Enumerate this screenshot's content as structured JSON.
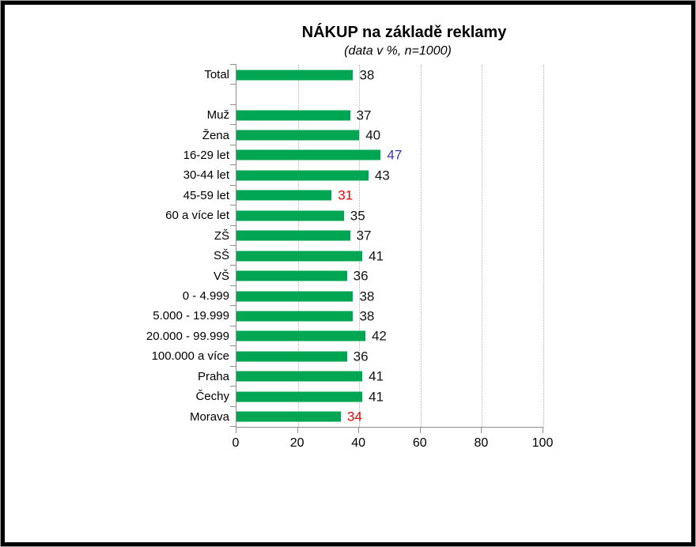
{
  "window": {
    "background": "#ffffff",
    "border_color": "#000000",
    "outer_edge_color": "#a6a6a6"
  },
  "chart_data": {
    "type": "bar",
    "orientation": "horizontal",
    "title": "NÁKUP na základě reklamy",
    "subtitle": "(data v %, n=1000)",
    "xlim": [
      0,
      100
    ],
    "x_ticks": [
      0,
      20,
      40,
      60,
      80,
      100
    ],
    "grid": "vertical-dotted",
    "legend": "none",
    "bar_color": "#00A651",
    "value_color_default": "#141414",
    "highlight_blue": "#3333CC",
    "highlight_red": "#FF0000",
    "rows": [
      {
        "label": "Total",
        "value": 38
      },
      {
        "label": "",
        "value": null
      },
      {
        "label": "Muž",
        "value": 37
      },
      {
        "label": "Žena",
        "value": 40
      },
      {
        "label": "16-29 let",
        "value": 47,
        "value_color": "#3333CC"
      },
      {
        "label": "30-44 let",
        "value": 43
      },
      {
        "label": "45-59 let",
        "value": 31,
        "value_color": "#FF0000"
      },
      {
        "label": "60 a více let",
        "value": 35
      },
      {
        "label": "ZŠ",
        "value": 37
      },
      {
        "label": "SŠ",
        "value": 41
      },
      {
        "label": "VŠ",
        "value": 36
      },
      {
        "label": "0 - 4.999",
        "value": 38
      },
      {
        "label": "5.000 - 19.999",
        "value": 38
      },
      {
        "label": "20.000 - 99.999",
        "value": 42
      },
      {
        "label": "100.000 a více",
        "value": 36
      },
      {
        "label": "Praha",
        "value": 41
      },
      {
        "label": "Čechy",
        "value": 41
      },
      {
        "label": "Morava",
        "value": 34,
        "value_color": "#FF0000"
      }
    ]
  }
}
